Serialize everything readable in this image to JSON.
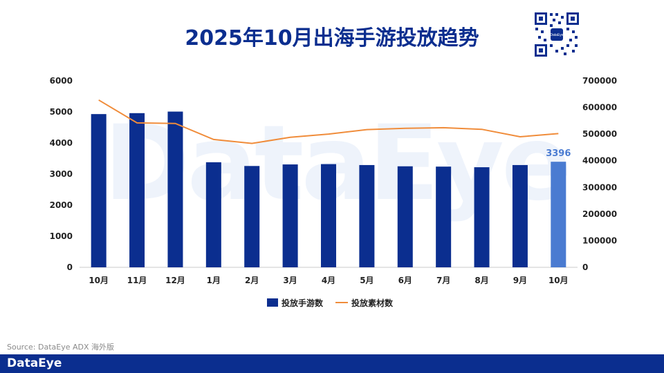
{
  "page": {
    "title": "2025年10月出海手游投放趋势",
    "source": "Source: DataEye ADX 海外版",
    "brand": "DataEye",
    "watermark": "DataEye",
    "qr_label": "DataEye"
  },
  "colors": {
    "bar": "#0b2e8f",
    "bar_highlight": "#4a7bd1",
    "line": "#f08c3a",
    "footer": "#0b2e8f"
  },
  "chart_data": {
    "type": "bar+line",
    "categories": [
      "10月",
      "11月",
      "12月",
      "1月",
      "2月",
      "3月",
      "4月",
      "5月",
      "6月",
      "7月",
      "8月",
      "9月",
      "10月"
    ],
    "series": [
      {
        "name": "投放手游数",
        "type": "bar",
        "axis": "left",
        "values": [
          4930,
          4960,
          5010,
          3380,
          3260,
          3310,
          3320,
          3290,
          3250,
          3240,
          3220,
          3290,
          3396
        ]
      },
      {
        "name": "投放素材数",
        "type": "line",
        "axis": "right",
        "values": [
          628000,
          542000,
          540000,
          480000,
          465000,
          488000,
          500000,
          517000,
          522000,
          524000,
          518000,
          490000,
          502000
        ]
      }
    ],
    "left_axis": {
      "min": 0,
      "max": 6000,
      "ticks": [
        0,
        1000,
        2000,
        3000,
        4000,
        5000,
        6000
      ]
    },
    "right_axis": {
      "min": 0,
      "max": 700000,
      "ticks": [
        0,
        100000,
        200000,
        300000,
        400000,
        500000,
        600000,
        700000
      ]
    },
    "highlight_index": 12,
    "data_labels": [
      {
        "index": 12,
        "text": "3396"
      }
    ],
    "legend_position": "bottom"
  }
}
